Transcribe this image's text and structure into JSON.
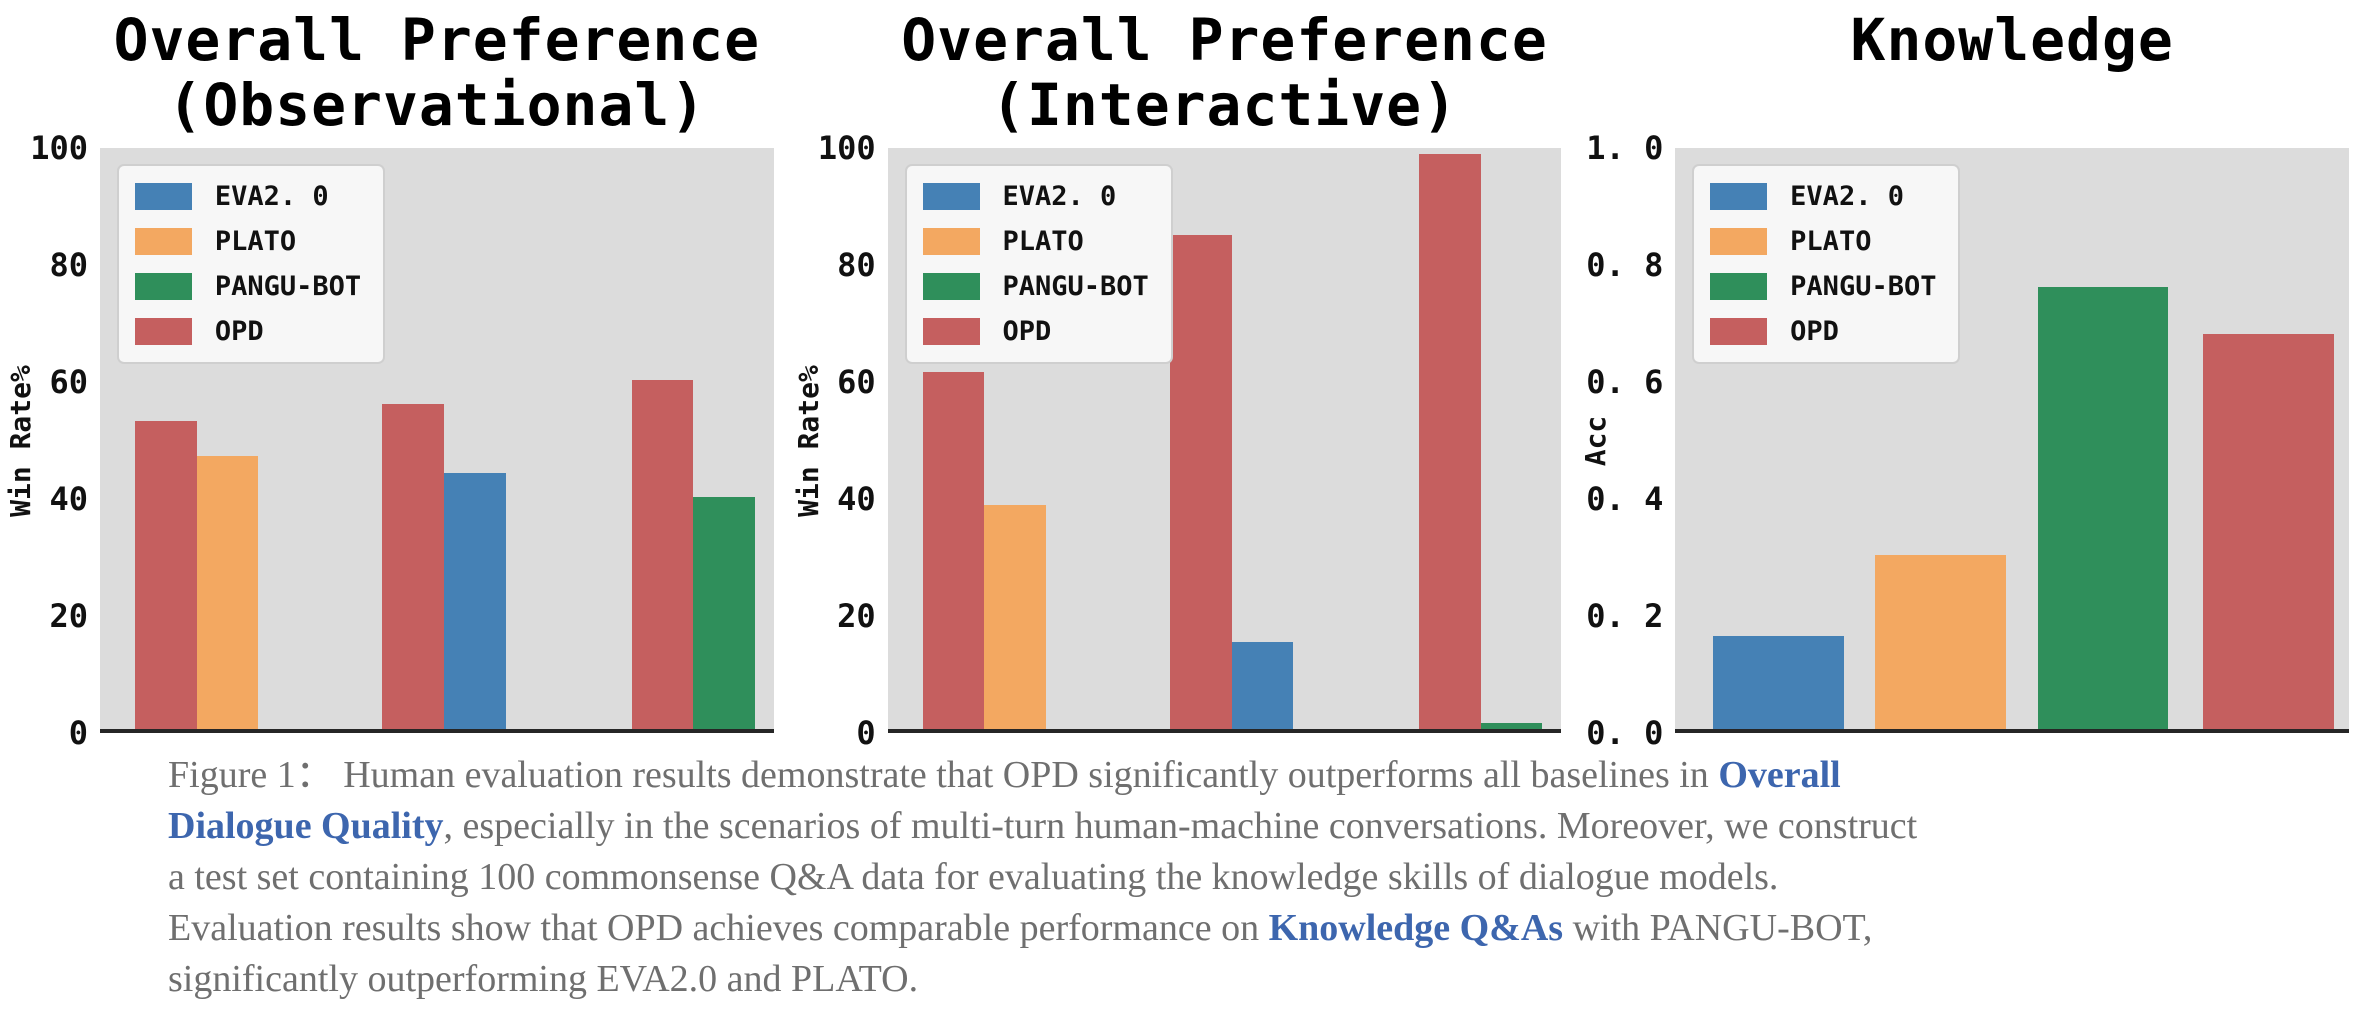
{
  "theme": {
    "plot_bg": "#dcdcdc",
    "axis_spine": "#262626",
    "legend_bg": "#f7f7f7",
    "legend_border": "#cfcfcf",
    "caption_text": "#6f6f6f",
    "caption_emphasis": "#3d66ae",
    "title_color": "#000000",
    "page_bg": "#ffffff"
  },
  "legend": {
    "position": "upper-left",
    "entries": [
      {
        "label": "EVA2. 0",
        "key": "eva2_0"
      },
      {
        "label": "PLATO",
        "key": "plato"
      },
      {
        "label": "PANGU-BOT",
        "key": "pangu_bot"
      },
      {
        "label": "OPD",
        "key": "opd"
      }
    ],
    "colors": {
      "eva2_0": "#4581b5",
      "plato": "#f3a861",
      "pangu_bot": "#2f8f5b",
      "opd": "#c55f5f"
    }
  },
  "chart_data": [
    {
      "type": "bar",
      "title": "Overall Preference\n(Observational)",
      "xlabel": "",
      "ylabel": "Win Rate%",
      "ylim": [
        0,
        100
      ],
      "yticks": [
        "100",
        "80",
        "60",
        "40",
        "20",
        "0"
      ],
      "grid": false,
      "legend_position": "upper-left",
      "bar_width_pct": 9.15,
      "bars": [
        {
          "series": "OPD",
          "key": "opd",
          "value": 53,
          "left_pct": 5.2
        },
        {
          "series": "PLATO",
          "key": "plato",
          "value": 47,
          "left_pct": 14.35
        },
        {
          "series": "OPD",
          "key": "opd",
          "value": 56,
          "left_pct": 41.9
        },
        {
          "series": "EVA2.0",
          "key": "eva2_0",
          "value": 44,
          "left_pct": 51.05
        },
        {
          "series": "OPD",
          "key": "opd",
          "value": 60,
          "left_pct": 78.9
        },
        {
          "series": "PANGU-BOT",
          "key": "pangu_bot",
          "value": 40,
          "left_pct": 88.05
        }
      ]
    },
    {
      "type": "bar",
      "title": "Overall Preference\n(Interactive)",
      "xlabel": "",
      "ylabel": "Win Rate%",
      "ylim": [
        0,
        100
      ],
      "yticks": [
        "100",
        "80",
        "60",
        "40",
        "20",
        "0"
      ],
      "grid": false,
      "legend_position": "upper-left",
      "bar_width_pct": 9.15,
      "bars": [
        {
          "series": "OPD",
          "key": "opd",
          "value": 61.5,
          "left_pct": 5.2
        },
        {
          "series": "PLATO",
          "key": "plato",
          "value": 38.5,
          "left_pct": 14.35
        },
        {
          "series": "OPD",
          "key": "opd",
          "value": 85,
          "left_pct": 41.9
        },
        {
          "series": "EVA2.0",
          "key": "eva2_0",
          "value": 15,
          "left_pct": 51.05
        },
        {
          "series": "OPD",
          "key": "opd",
          "value": 99,
          "left_pct": 78.9
        },
        {
          "series": "PANGU-BOT",
          "key": "pangu_bot",
          "value": 1,
          "left_pct": 88.05
        }
      ]
    },
    {
      "type": "bar",
      "title": "Knowledge",
      "xlabel": "",
      "ylabel": "Acc",
      "ylim": [
        0,
        1
      ],
      "yticks": [
        "1. 0",
        "0. 8",
        "0. 6",
        "0. 4",
        "0. 2",
        "0. 0"
      ],
      "grid": false,
      "legend_position": "upper-left",
      "bar_width_pct": 19.4,
      "bars": [
        {
          "series": "EVA2.0",
          "key": "eva2_0",
          "value": 0.16,
          "left_pct": 5.6
        },
        {
          "series": "PLATO",
          "key": "plato",
          "value": 0.3,
          "left_pct": 29.7
        },
        {
          "series": "PANGU-BOT",
          "key": "pangu_bot",
          "value": 0.76,
          "left_pct": 53.8
        },
        {
          "series": "OPD",
          "key": "opd",
          "value": 0.68,
          "left_pct": 78.3
        }
      ]
    }
  ],
  "figure": {
    "caption": {
      "lines": [
        {
          "segments": [
            {
              "text": "Figure 1： Human evaluation results demonstrate that OPD significantly outperforms all baselines in ",
              "style": "normal"
            },
            {
              "text": "Overall",
              "style": "emphasis"
            }
          ]
        },
        {
          "segments": [
            {
              "text": "Dialogue Quality",
              "style": "emphasis"
            },
            {
              "text": ", especially in the scenarios of multi-turn human-machine conversations. Moreover, we construct",
              "style": "normal"
            }
          ]
        },
        {
          "segments": [
            {
              "text": "a test set containing 100 commonsense Q&A data for evaluating the knowledge skills of dialogue models.",
              "style": "normal"
            }
          ]
        },
        {
          "segments": [
            {
              "text": "Evaluation results show that OPD achieves comparable performance on ",
              "style": "normal"
            },
            {
              "text": "Knowledge Q&As",
              "style": "emphasis"
            },
            {
              "text": " with PANGU-BOT,",
              "style": "normal"
            }
          ]
        },
        {
          "segments": [
            {
              "text": "significantly outperforming EVA2.0 and PLATO.",
              "style": "normal"
            }
          ]
        }
      ]
    }
  }
}
